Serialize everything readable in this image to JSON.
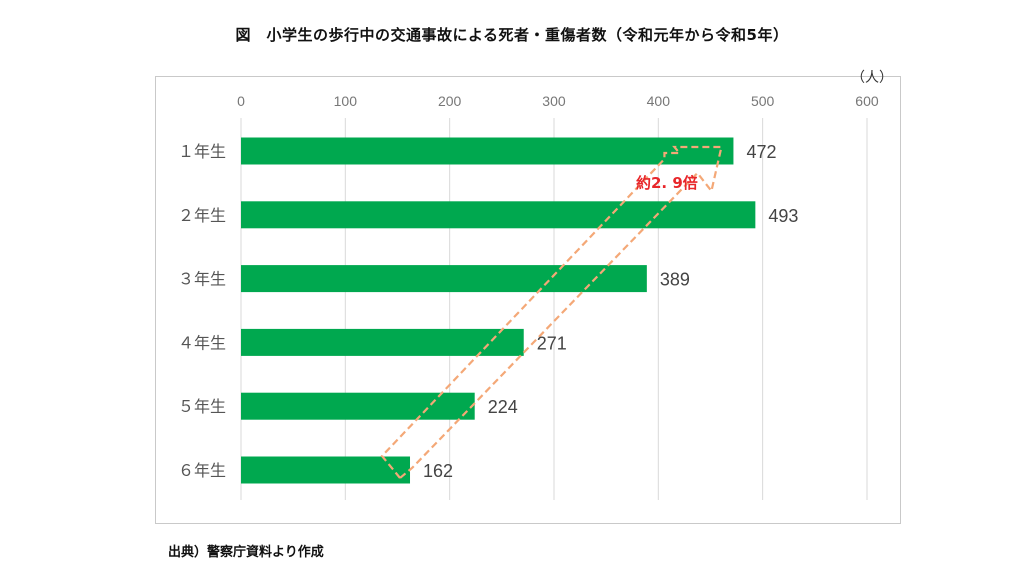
{
  "title": "図　小学生の歩行中の交通事故による死者・重傷者数（令和元年から令和5年）",
  "source": "出典）警察庁資料より作成",
  "annotation": "約2. 9倍",
  "colors": {
    "bar": "#00a84f",
    "grid": "#d9d9d9",
    "arrow": "#f4a877",
    "annotation": "#e8262a"
  },
  "chart_data": {
    "type": "bar",
    "orientation": "horizontal",
    "unit": "（人）",
    "categories": [
      "１年生",
      "２年生",
      "３年生",
      "４年生",
      "５年生",
      "６年生"
    ],
    "values": [
      472,
      493,
      389,
      271,
      224,
      162
    ],
    "xlim": [
      0,
      600
    ],
    "xticks": [
      0,
      100,
      200,
      300,
      400,
      500,
      600
    ],
    "axis_position": "top",
    "grid": true,
    "data_labels": true
  }
}
